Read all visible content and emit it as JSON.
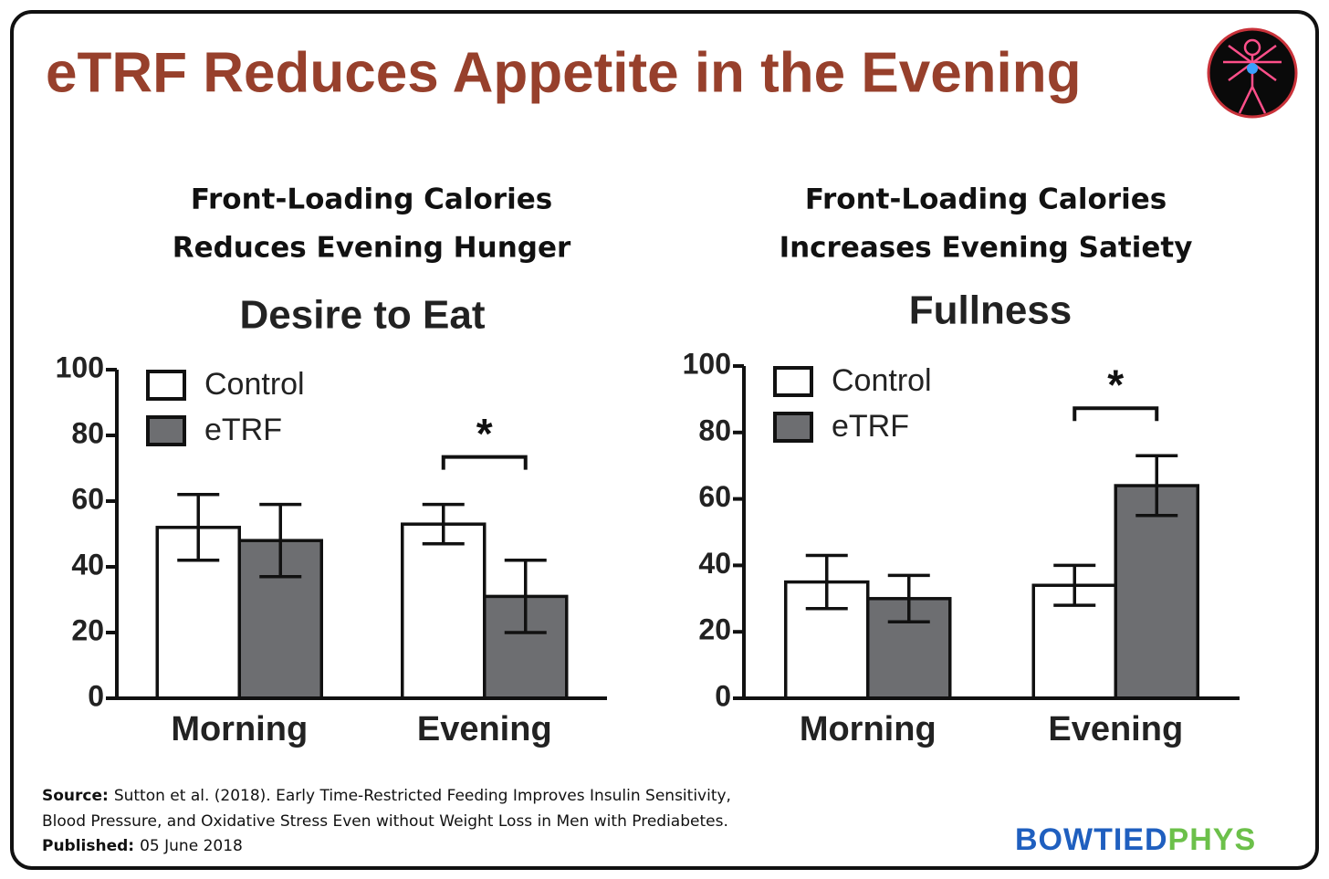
{
  "title": "eTRF Reduces Appetite in the Evening",
  "chart_data": [
    {
      "type": "bar",
      "subtitle": [
        "Front-Loading Calories",
        "Reduces Evening Hunger"
      ],
      "title": "Desire to Eat",
      "categories": [
        "Morning",
        "Evening"
      ],
      "series": [
        {
          "name": "Control",
          "color": "#ffffff",
          "values": [
            52,
            53
          ],
          "errors": [
            10,
            6
          ]
        },
        {
          "name": "eTRF",
          "color": "#6d6e71",
          "values": [
            48,
            31
          ],
          "errors": [
            11,
            11
          ]
        }
      ],
      "ylim": [
        0,
        100
      ],
      "yticks": [
        0,
        20,
        40,
        60,
        80,
        100
      ],
      "legend": "top-left",
      "annotations": [
        {
          "text": "*",
          "x": "Evening"
        }
      ]
    },
    {
      "type": "bar",
      "subtitle": [
        "Front-Loading Calories",
        "Increases Evening Satiety"
      ],
      "title": "Fullness",
      "categories": [
        "Morning",
        "Evening"
      ],
      "series": [
        {
          "name": "Control",
          "color": "#ffffff",
          "values": [
            35,
            34
          ],
          "errors": [
            8,
            6
          ]
        },
        {
          "name": "eTRF",
          "color": "#6d6e71",
          "values": [
            30,
            64
          ],
          "errors": [
            7,
            9
          ]
        }
      ],
      "ylim": [
        0,
        100
      ],
      "yticks": [
        0,
        20,
        40,
        60,
        80,
        100
      ],
      "legend": "top-left",
      "annotations": [
        {
          "text": "*",
          "x": "Evening"
        }
      ]
    }
  ],
  "source": {
    "label": "Source:",
    "lines": [
      "Sutton et al. (2018). Early Time-Restricted Feeding Improves Insulin Sensitivity,",
      "Blood Pressure, and Oxidative Stress Even without Weight Loss in Men with Prediabetes."
    ]
  },
  "published": {
    "label": "Published:",
    "text": "05 June 2018"
  },
  "logo": [
    "BOWTIED",
    "PHYS"
  ]
}
